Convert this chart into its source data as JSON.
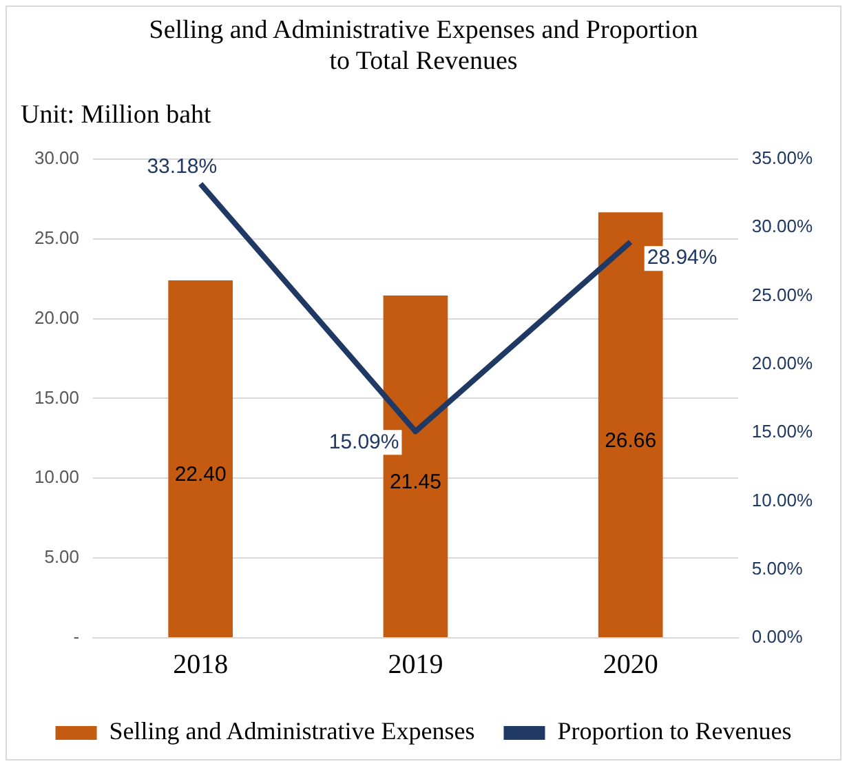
{
  "chart_data": {
    "type": "bar",
    "title": "Selling and Administrative Expenses and Proportion to Total Revenues",
    "subtitle": "Unit: Million baht",
    "categories": [
      "2018",
      "2019",
      "2020"
    ],
    "series": [
      {
        "name": "Selling and Administrative Expenses",
        "color": "#c55a11",
        "values": [
          22.4,
          21.45,
          26.66
        ],
        "value_labels": [
          "22.40",
          "21.45",
          "26.66"
        ]
      },
      {
        "name": "Proportion to Revenues",
        "type": "line",
        "axis": "y2",
        "color": "#1f3864",
        "values": [
          33.18,
          15.09,
          28.94
        ],
        "value_labels": [
          "33.18%",
          "15.09%",
          "28.94%"
        ]
      }
    ],
    "ylim": [
      0,
      30
    ],
    "yticks": [
      {
        "value": 0,
        "label": "-"
      },
      {
        "value": 5,
        "label": "5.00"
      },
      {
        "value": 10,
        "label": "10.00"
      },
      {
        "value": 15,
        "label": "15.00"
      },
      {
        "value": 20,
        "label": "20.00"
      },
      {
        "value": 25,
        "label": "25.00"
      },
      {
        "value": 30,
        "label": "30.00"
      }
    ],
    "y2lim": [
      0,
      35
    ],
    "y2ticks": [
      {
        "value": 0,
        "label": "0.00%"
      },
      {
        "value": 5,
        "label": "5.00%"
      },
      {
        "value": 10,
        "label": "10.00%"
      },
      {
        "value": 15,
        "label": "15.00%"
      },
      {
        "value": 20,
        "label": "20.00%"
      },
      {
        "value": 25,
        "label": "25.00%"
      },
      {
        "value": 30,
        "label": "30.00%"
      },
      {
        "value": 35,
        "label": "35.00%"
      }
    ],
    "grid": "y",
    "legend": "bottom",
    "marker": "none",
    "line_style": "solid"
  }
}
